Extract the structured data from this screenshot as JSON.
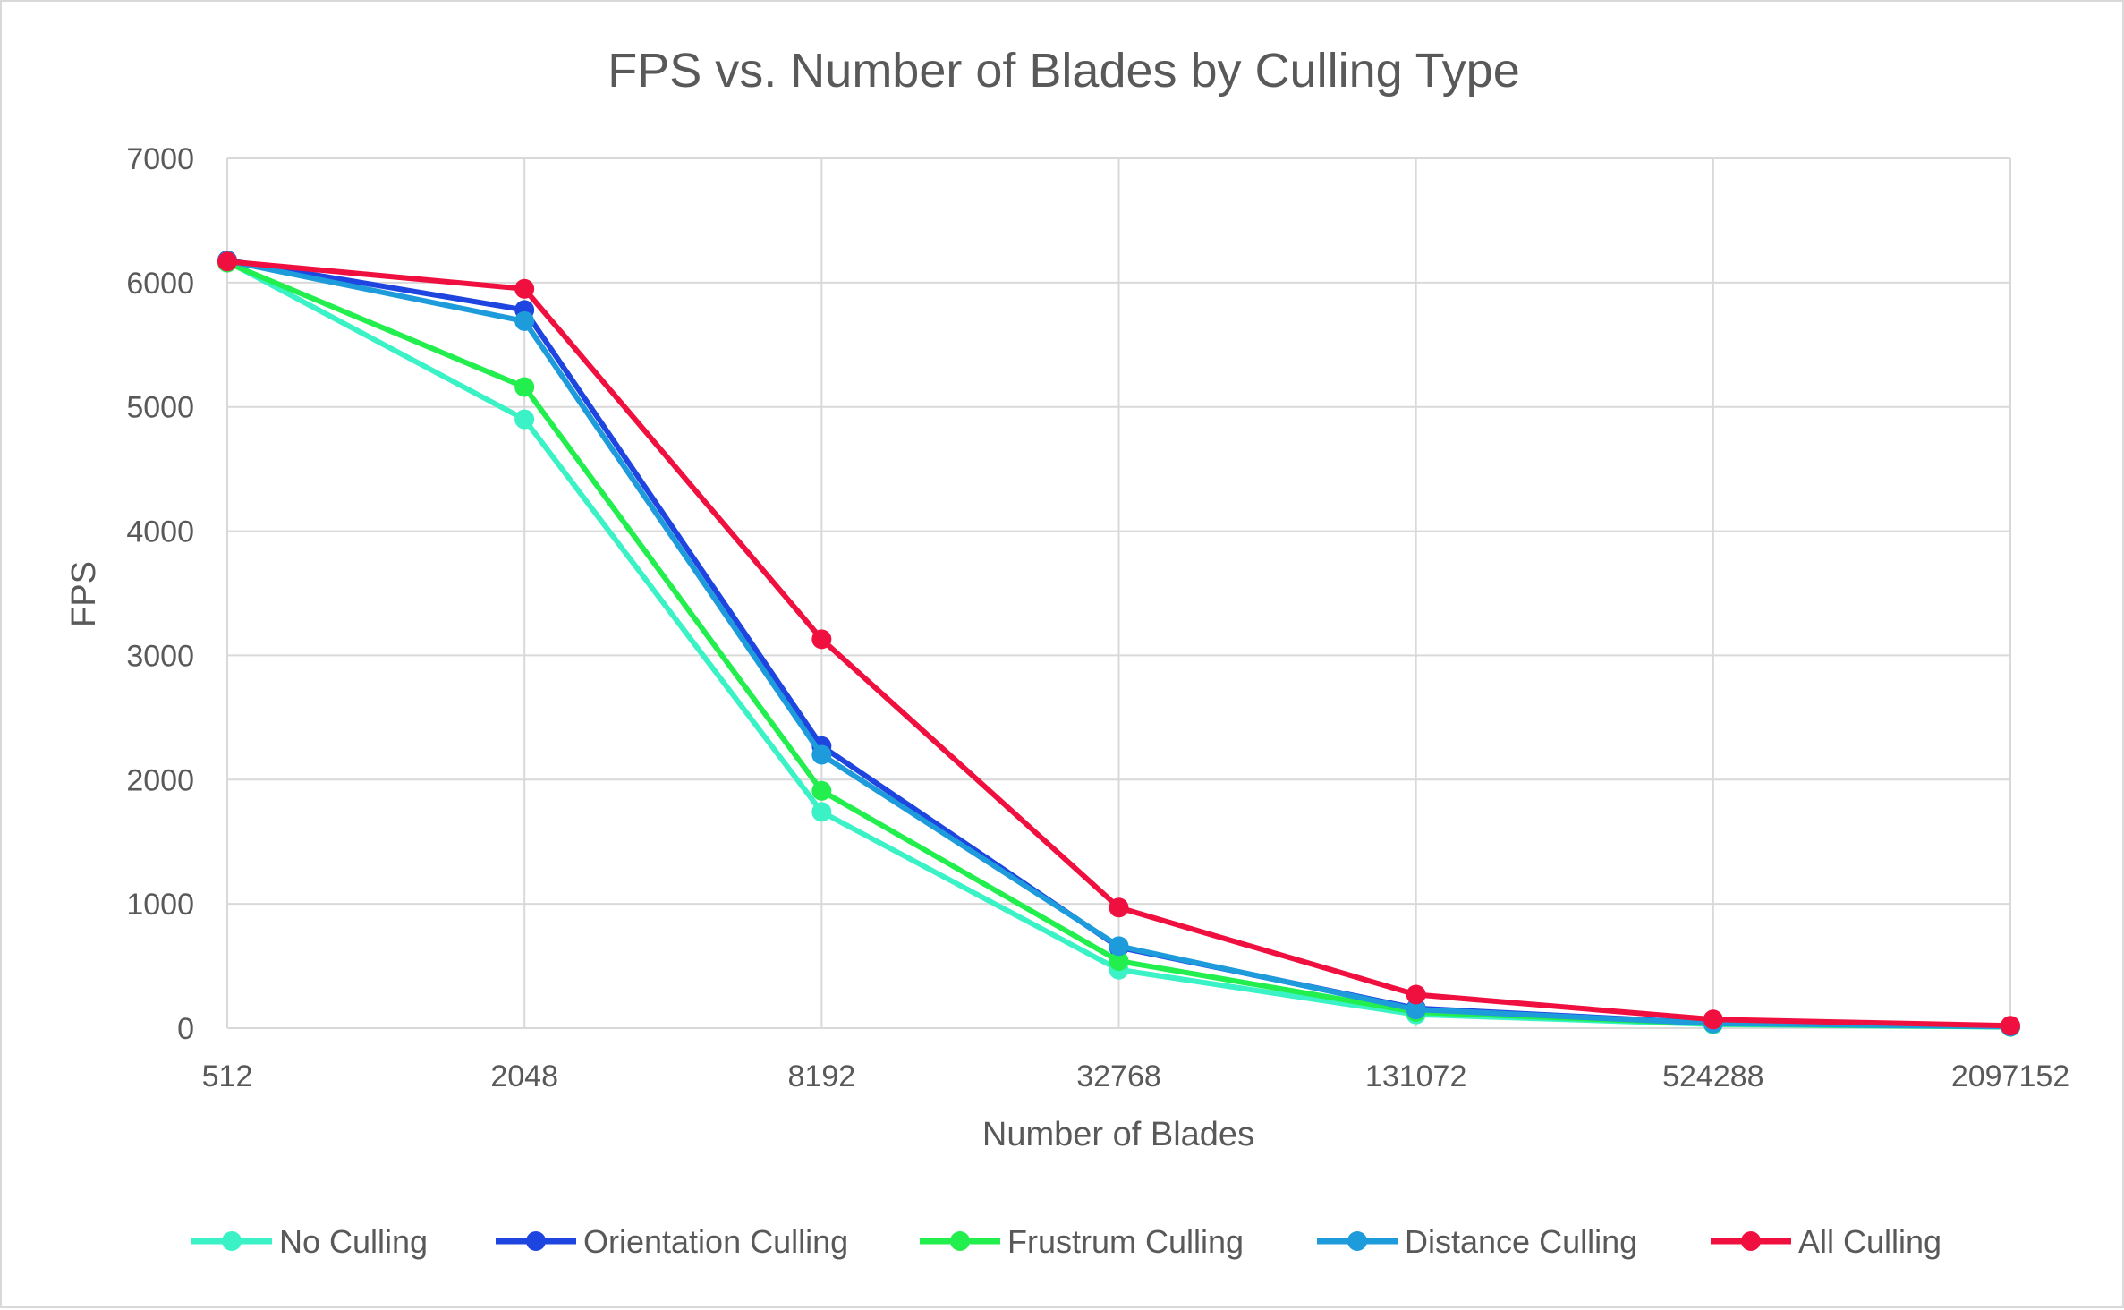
{
  "chart_data": {
    "type": "line",
    "title": "FPS vs. Number of Blades by Culling Type",
    "xlabel": "Number of Blades",
    "ylabel": "FPS",
    "categories": [
      "512",
      "2048",
      "8192",
      "32768",
      "131072",
      "524288",
      "2097152"
    ],
    "ylim": [
      0,
      7000
    ],
    "yticks": [
      0,
      1000,
      2000,
      3000,
      4000,
      5000,
      6000,
      7000
    ],
    "grid": true,
    "legend_position": "bottom",
    "series": [
      {
        "name": "No Culling",
        "color": "#3AF2C5",
        "values": [
          6170,
          4900,
          1740,
          470,
          110,
          30,
          10
        ]
      },
      {
        "name": "Orientation Culling",
        "color": "#1F45E0",
        "values": [
          6180,
          5780,
          2270,
          650,
          160,
          40,
          12
        ]
      },
      {
        "name": "Frustrum Culling",
        "color": "#22EE4E",
        "values": [
          6160,
          5160,
          1910,
          540,
          130,
          35,
          11
        ]
      },
      {
        "name": "Distance Culling",
        "color": "#1D9BDB",
        "values": [
          6175,
          5690,
          2200,
          660,
          150,
          38,
          12
        ]
      },
      {
        "name": "All Culling",
        "color": "#F0103F",
        "values": [
          6170,
          5950,
          3130,
          970,
          270,
          70,
          20
        ]
      }
    ]
  }
}
